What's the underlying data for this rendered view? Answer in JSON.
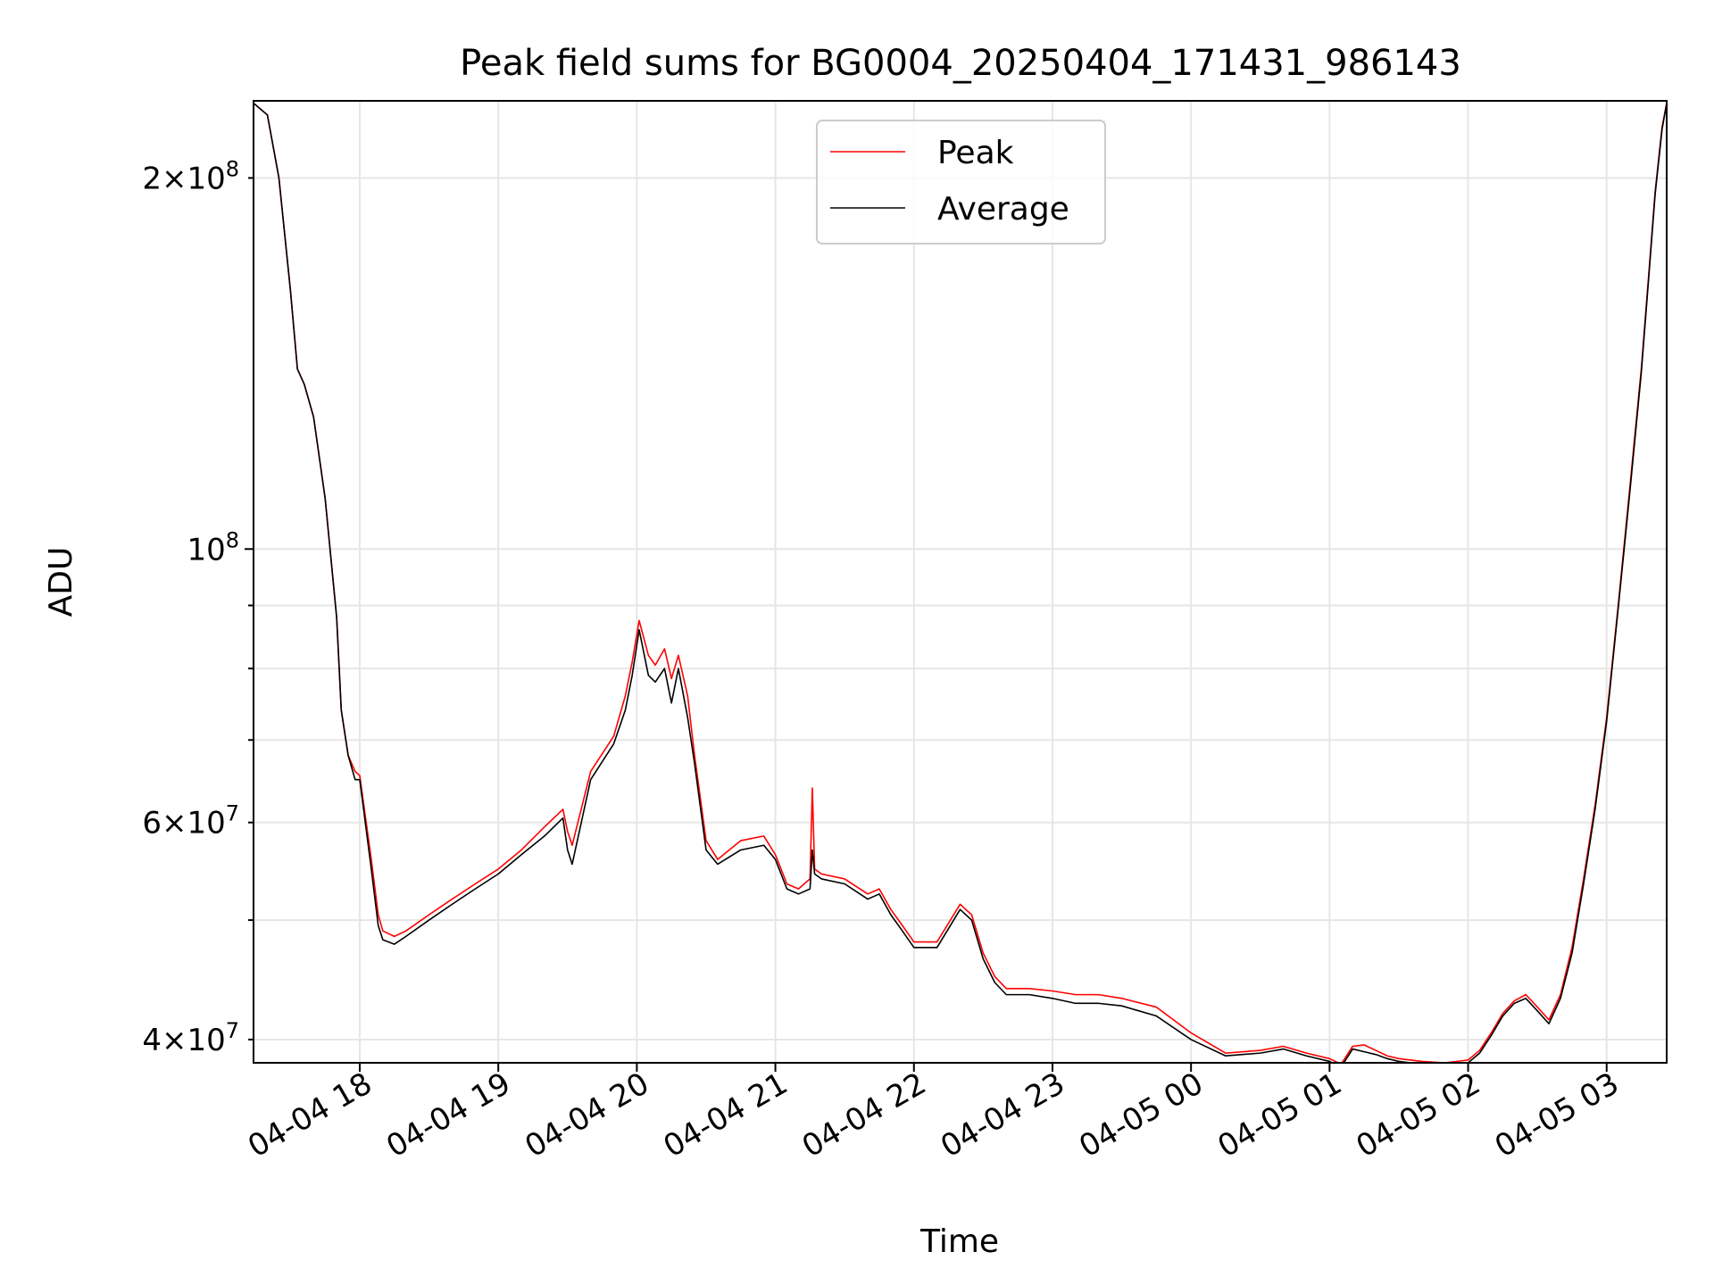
{
  "chart_data": {
    "type": "line",
    "title": "Peak field sums for BG0004_20250404_171431_986143",
    "xlabel": "Time",
    "ylabel": "ADU",
    "yscale": "log",
    "grid": true,
    "legend_placement": "top-center",
    "xlim": [
      "2025-04-04 17:14",
      "2025-04-05 03:26"
    ],
    "ylim": [
      38300000,
      231000000
    ],
    "x_ticks": [
      {
        "value": "2025-04-04 18:00",
        "label": "04-04 18"
      },
      {
        "value": "2025-04-04 19:00",
        "label": "04-04 19"
      },
      {
        "value": "2025-04-04 20:00",
        "label": "04-04 20"
      },
      {
        "value": "2025-04-04 21:00",
        "label": "04-04 21"
      },
      {
        "value": "2025-04-04 22:00",
        "label": "04-04 22"
      },
      {
        "value": "2025-04-04 23:00",
        "label": "04-04 23"
      },
      {
        "value": "2025-04-05 00:00",
        "label": "04-05 00"
      },
      {
        "value": "2025-04-05 01:00",
        "label": "04-05 01"
      },
      {
        "value": "2025-04-05 02:00",
        "label": "04-05 02"
      },
      {
        "value": "2025-04-05 03:00",
        "label": "04-05 03"
      }
    ],
    "y_ticks_major": [
      {
        "value": 100000000,
        "base": "10",
        "exp": "8",
        "mantissa": ""
      }
    ],
    "y_ticks_minor_labeled": [
      {
        "value": 40000000,
        "base": "10",
        "exp": "7",
        "mantissa": "4×"
      },
      {
        "value": 60000000,
        "base": "10",
        "exp": "7",
        "mantissa": "6×"
      },
      {
        "value": 200000000,
        "base": "10",
        "exp": "8",
        "mantissa": "2×"
      }
    ],
    "y_ticks_minor_unlabeled": [
      50000000,
      70000000,
      80000000,
      90000000
    ],
    "series": [
      {
        "name": "Peak",
        "color": "#ff0000",
        "x": [
          "2025-04-04 17:14",
          "2025-04-04 17:20",
          "2025-04-04 17:25",
          "2025-04-04 17:30",
          "2025-04-04 17:33",
          "2025-04-04 17:36",
          "2025-04-04 17:40",
          "2025-04-04 17:45",
          "2025-04-04 17:50",
          "2025-04-04 17:52",
          "2025-04-04 17:55",
          "2025-04-04 17:58",
          "2025-04-04 18:00",
          "2025-04-04 18:05",
          "2025-04-04 18:08",
          "2025-04-04 18:10",
          "2025-04-04 18:15",
          "2025-04-04 18:20",
          "2025-04-04 18:30",
          "2025-04-04 18:40",
          "2025-04-04 18:50",
          "2025-04-04 19:00",
          "2025-04-04 19:10",
          "2025-04-04 19:20",
          "2025-04-04 19:28",
          "2025-04-04 19:30",
          "2025-04-04 19:32",
          "2025-04-04 19:40",
          "2025-04-04 19:50",
          "2025-04-04 19:55",
          "2025-04-04 19:58",
          "2025-04-04 20:01",
          "2025-04-04 20:05",
          "2025-04-04 20:08",
          "2025-04-04 20:12",
          "2025-04-04 20:15",
          "2025-04-04 20:18",
          "2025-04-04 20:22",
          "2025-04-04 20:25",
          "2025-04-04 20:30",
          "2025-04-04 20:35",
          "2025-04-04 20:45",
          "2025-04-04 20:55",
          "2025-04-04 21:00",
          "2025-04-04 21:05",
          "2025-04-04 21:10",
          "2025-04-04 21:15",
          "2025-04-04 21:16",
          "2025-04-04 21:17",
          "2025-04-04 21:20",
          "2025-04-04 21:30",
          "2025-04-04 21:40",
          "2025-04-04 21:45",
          "2025-04-04 21:50",
          "2025-04-04 21:55",
          "2025-04-04 22:00",
          "2025-04-04 22:10",
          "2025-04-04 22:20",
          "2025-04-04 22:25",
          "2025-04-04 22:30",
          "2025-04-04 22:35",
          "2025-04-04 22:40",
          "2025-04-04 22:50",
          "2025-04-04 23:00",
          "2025-04-04 23:10",
          "2025-04-04 23:20",
          "2025-04-04 23:30",
          "2025-04-04 23:45",
          "2025-04-05 00:00",
          "2025-04-05 00:15",
          "2025-04-05 00:30",
          "2025-04-05 00:40",
          "2025-04-05 00:50",
          "2025-04-05 01:00",
          "2025-04-05 01:05",
          "2025-04-05 01:10",
          "2025-04-05 01:15",
          "2025-04-05 01:20",
          "2025-04-05 01:25",
          "2025-04-05 01:30",
          "2025-04-05 01:40",
          "2025-04-05 01:50",
          "2025-04-05 02:00",
          "2025-04-05 02:05",
          "2025-04-05 02:10",
          "2025-04-05 02:15",
          "2025-04-05 02:20",
          "2025-04-05 02:25",
          "2025-04-05 02:30",
          "2025-04-05 02:35",
          "2025-04-05 02:40",
          "2025-04-05 02:45",
          "2025-04-05 02:50",
          "2025-04-05 02:55",
          "2025-04-05 03:00",
          "2025-04-05 03:05",
          "2025-04-05 03:10",
          "2025-04-05 03:15",
          "2025-04-05 03:18",
          "2025-04-05 03:21",
          "2025-04-05 03:24",
          "2025-04-05 03:26"
        ],
        "values": [
          230000000,
          225000000,
          200000000,
          162000000,
          140000000,
          136000000,
          128000000,
          110000000,
          88000000,
          74000000,
          68000000,
          66000000,
          65500000,
          56000000,
          50500000,
          49000000,
          48500000,
          49000000,
          50500000,
          52000000,
          53500000,
          55000000,
          57000000,
          59500000,
          61500000,
          59000000,
          57500000,
          66000000,
          70500000,
          76000000,
          81000000,
          87500000,
          82000000,
          80500000,
          83000000,
          78500000,
          82000000,
          76000000,
          68000000,
          58000000,
          56000000,
          58000000,
          58500000,
          56500000,
          53500000,
          53000000,
          54000000,
          64000000,
          55000000,
          54500000,
          54000000,
          52500000,
          53000000,
          51000000,
          49500000,
          48000000,
          48000000,
          51500000,
          50500000,
          47000000,
          45000000,
          44000000,
          44000000,
          43800000,
          43500000,
          43500000,
          43200000,
          42500000,
          40500000,
          39000000,
          39200000,
          39500000,
          39000000,
          38600000,
          38200000,
          39500000,
          39600000,
          39200000,
          38800000,
          38600000,
          38400000,
          38300000,
          38500000,
          39200000,
          40500000,
          42000000,
          43000000,
          43500000,
          42500000,
          41500000,
          43500000,
          47500000,
          54000000,
          62000000,
          73000000,
          90000000,
          112000000,
          140000000,
          165000000,
          195000000,
          220000000,
          230000000
        ]
      },
      {
        "name": "Average",
        "color": "#000000",
        "x": [
          "2025-04-04 17:14",
          "2025-04-04 17:20",
          "2025-04-04 17:25",
          "2025-04-04 17:30",
          "2025-04-04 17:33",
          "2025-04-04 17:36",
          "2025-04-04 17:40",
          "2025-04-04 17:45",
          "2025-04-04 17:50",
          "2025-04-04 17:52",
          "2025-04-04 17:55",
          "2025-04-04 17:58",
          "2025-04-04 18:00",
          "2025-04-04 18:05",
          "2025-04-04 18:08",
          "2025-04-04 18:10",
          "2025-04-04 18:15",
          "2025-04-04 18:20",
          "2025-04-04 18:30",
          "2025-04-04 18:40",
          "2025-04-04 18:50",
          "2025-04-04 19:00",
          "2025-04-04 19:10",
          "2025-04-04 19:20",
          "2025-04-04 19:28",
          "2025-04-04 19:30",
          "2025-04-04 19:32",
          "2025-04-04 19:40",
          "2025-04-04 19:50",
          "2025-04-04 19:55",
          "2025-04-04 19:58",
          "2025-04-04 20:01",
          "2025-04-04 20:05",
          "2025-04-04 20:08",
          "2025-04-04 20:12",
          "2025-04-04 20:15",
          "2025-04-04 20:18",
          "2025-04-04 20:22",
          "2025-04-04 20:25",
          "2025-04-04 20:30",
          "2025-04-04 20:35",
          "2025-04-04 20:45",
          "2025-04-04 20:55",
          "2025-04-04 21:00",
          "2025-04-04 21:05",
          "2025-04-04 21:10",
          "2025-04-04 21:15",
          "2025-04-04 21:16",
          "2025-04-04 21:17",
          "2025-04-04 21:20",
          "2025-04-04 21:30",
          "2025-04-04 21:40",
          "2025-04-04 21:45",
          "2025-04-04 21:50",
          "2025-04-04 21:55",
          "2025-04-04 22:00",
          "2025-04-04 22:10",
          "2025-04-04 22:20",
          "2025-04-04 22:25",
          "2025-04-04 22:30",
          "2025-04-04 22:35",
          "2025-04-04 22:40",
          "2025-04-04 22:50",
          "2025-04-04 23:00",
          "2025-04-04 23:10",
          "2025-04-04 23:20",
          "2025-04-04 23:30",
          "2025-04-04 23:45",
          "2025-04-05 00:00",
          "2025-04-05 00:15",
          "2025-04-05 00:30",
          "2025-04-05 00:40",
          "2025-04-05 00:50",
          "2025-04-05 01:00",
          "2025-04-05 01:05",
          "2025-04-05 01:10",
          "2025-04-05 01:15",
          "2025-04-05 01:20",
          "2025-04-05 01:25",
          "2025-04-05 01:30",
          "2025-04-05 01:40",
          "2025-04-05 01:50",
          "2025-04-05 02:00",
          "2025-04-05 02:05",
          "2025-04-05 02:10",
          "2025-04-05 02:15",
          "2025-04-05 02:20",
          "2025-04-05 02:25",
          "2025-04-05 02:30",
          "2025-04-05 02:35",
          "2025-04-05 02:40",
          "2025-04-05 02:45",
          "2025-04-05 02:50",
          "2025-04-05 02:55",
          "2025-04-05 03:00",
          "2025-04-05 03:05",
          "2025-04-05 03:10",
          "2025-04-05 03:15",
          "2025-04-05 03:18",
          "2025-04-05 03:21",
          "2025-04-05 03:24",
          "2025-04-05 03:26"
        ],
        "values": [
          230000000,
          225000000,
          200000000,
          162000000,
          140000000,
          136000000,
          128000000,
          110000000,
          88000000,
          74000000,
          68000000,
          65000000,
          65000000,
          55000000,
          49500000,
          48200000,
          47800000,
          48500000,
          50000000,
          51500000,
          53000000,
          54500000,
          56500000,
          58500000,
          60500000,
          57000000,
          55500000,
          65000000,
          69500000,
          74000000,
          79000000,
          86000000,
          79000000,
          78000000,
          80000000,
          75000000,
          80000000,
          73000000,
          67000000,
          57000000,
          55500000,
          57000000,
          57500000,
          56000000,
          53000000,
          52500000,
          53000000,
          57000000,
          54500000,
          54000000,
          53500000,
          52000000,
          52500000,
          50500000,
          49000000,
          47500000,
          47500000,
          51000000,
          50000000,
          46500000,
          44500000,
          43500000,
          43500000,
          43200000,
          42800000,
          42800000,
          42600000,
          41800000,
          40000000,
          38800000,
          39000000,
          39300000,
          38800000,
          38400000,
          38000000,
          39300000,
          39100000,
          38900000,
          38600000,
          38400000,
          38200000,
          38100000,
          38300000,
          39000000,
          40300000,
          41800000,
          42800000,
          43200000,
          42200000,
          41200000,
          43200000,
          47000000,
          53500000,
          61500000,
          72500000,
          89500000,
          111000000,
          139000000,
          164000000,
          194000000,
          219000000,
          230000000
        ]
      }
    ]
  }
}
